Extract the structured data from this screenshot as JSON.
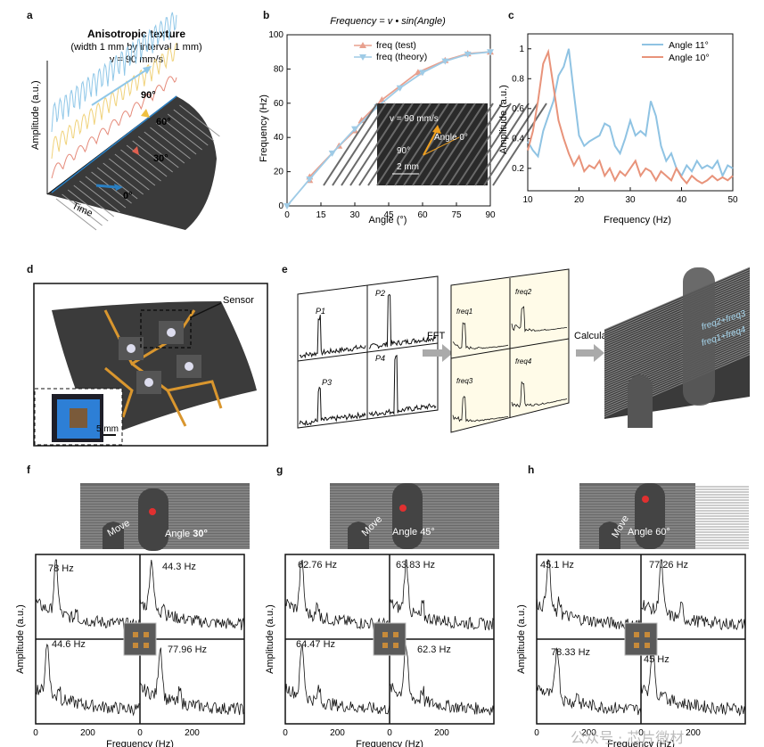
{
  "panels": {
    "a": "a",
    "b": "b",
    "c": "c",
    "d": "d",
    "e": "e",
    "f": "f",
    "g": "g",
    "h": "h"
  },
  "panel_a": {
    "title": "Anisotropic texture",
    "subtitle": "(width 1 mm by interval 1 mm)",
    "velocity": "v = 90 mm/s",
    "ylabel": "Amplitude (a.u.)",
    "xlabel": "Time",
    "angles": [
      "90°",
      "60°",
      "30°",
      "0°"
    ],
    "colors": {
      "a90": "#8fc7e8",
      "a60": "#f0d27a",
      "a30": "#e58a7a",
      "a0": "#2a7fc2"
    }
  },
  "panel_b": {
    "formula": "Frequency = v • sin(Angle)",
    "inset_velocity": "v = 90 mm/s",
    "inset_angle0": "Angle 0°",
    "inset_angle90": "90°",
    "inset_scale": "2 mm"
  },
  "panel_c": {
    "ylim_note": "0.2–1"
  },
  "panel_d": {
    "sensor_label": "Sensor",
    "scale_label": "5 mm"
  },
  "panel_e": {
    "fft_label": "FFT",
    "calculate_label": "Calculate",
    "peak_labels": [
      "P1",
      "P2",
      "P3",
      "P4"
    ],
    "freq_labels": [
      "freq1",
      "freq2",
      "freq3",
      "freq4"
    ],
    "overlay1": "freq2+freq3",
    "overlay2": "freq1+freq4"
  },
  "scenes": {
    "f": {
      "move": "Move",
      "angle_prefix": "Angle",
      "angle_value": "30°"
    },
    "g": {
      "move": "Move",
      "angle": "Angle 45°"
    },
    "h": {
      "move": "Move",
      "angle": "Angle 60°"
    }
  },
  "spectra": {
    "ylabel": "Amplitude (a.u.)",
    "xlabel": "Frequency (Hz)",
    "ticks": [
      "0",
      "200",
      "0",
      "200"
    ],
    "f": {
      "peaks": [
        "78 Hz",
        "44.3 Hz",
        "44.6 Hz",
        "77.96 Hz"
      ]
    },
    "g": {
      "peaks": [
        "62.76 Hz",
        "63.83 Hz",
        "64.47 Hz",
        "62.3 Hz"
      ]
    },
    "h": {
      "peaks": [
        "45.1 Hz",
        "77.26 Hz",
        "78.33 Hz",
        "45 Hz"
      ]
    }
  },
  "watermark": "公众号 · 芯片微材",
  "chart_data": [
    {
      "type": "line",
      "panel": "b",
      "title": "Frequency = v • sin(Angle)",
      "xlabel": "Angle (°)",
      "ylabel": "Frequency (Hz)",
      "xlim": [
        0,
        90
      ],
      "ylim": [
        0,
        100
      ],
      "xticks": [
        0,
        15,
        30,
        45,
        60,
        75,
        90
      ],
      "yticks": [
        0,
        20,
        40,
        60,
        80,
        100
      ],
      "legend_position": "top-right",
      "series": [
        {
          "name": "freq (test)",
          "color": "#e8a08e",
          "x": [
            10,
            10,
            23,
            30,
            33,
            42,
            58,
            70,
            80,
            90
          ],
          "y": [
            15,
            17,
            35,
            44,
            50,
            62,
            78,
            85,
            89,
            90
          ]
        },
        {
          "name": "freq (theory)",
          "color": "#9fcbe6",
          "x": [
            0,
            10,
            20,
            30,
            40,
            50,
            60,
            70,
            80,
            90
          ],
          "y": [
            0,
            15.6,
            30.8,
            45,
            57.9,
            68.9,
            77.9,
            84.6,
            88.6,
            90
          ]
        }
      ]
    },
    {
      "type": "line",
      "panel": "c",
      "xlabel": "Frequency (Hz)",
      "ylabel": "Amplitude (a.u.)",
      "xlim": [
        10,
        50
      ],
      "ylim": [
        0.05,
        1.1
      ],
      "xticks": [
        10,
        20,
        30,
        40,
        50
      ],
      "yticks": [
        0.2,
        0.4,
        0.6,
        0.8,
        1
      ],
      "legend_position": "top-right",
      "series": [
        {
          "name": "Angle 11°",
          "color": "#8fc3e3",
          "x": [
            10,
            11,
            12,
            13,
            14,
            15,
            16,
            17,
            18,
            19,
            20,
            21,
            22,
            23,
            24,
            25,
            26,
            27,
            28,
            29,
            30,
            31,
            32,
            33,
            34,
            35,
            36,
            37,
            38,
            39,
            40,
            41,
            42,
            43,
            44,
            45,
            46,
            47,
            48,
            49,
            50
          ],
          "y": [
            0.38,
            0.32,
            0.28,
            0.45,
            0.55,
            0.65,
            0.82,
            0.88,
            1.0,
            0.7,
            0.42,
            0.35,
            0.38,
            0.4,
            0.42,
            0.5,
            0.48,
            0.35,
            0.3,
            0.4,
            0.52,
            0.42,
            0.45,
            0.42,
            0.65,
            0.55,
            0.35,
            0.25,
            0.3,
            0.2,
            0.15,
            0.22,
            0.18,
            0.25,
            0.2,
            0.22,
            0.2,
            0.25,
            0.15,
            0.22,
            0.2
          ]
        },
        {
          "name": "Angle 10°",
          "color": "#e8937a",
          "x": [
            10,
            11,
            12,
            13,
            14,
            15,
            16,
            17,
            18,
            19,
            20,
            21,
            22,
            23,
            24,
            25,
            26,
            27,
            28,
            29,
            30,
            31,
            32,
            33,
            34,
            35,
            36,
            37,
            38,
            39,
            40,
            41,
            42,
            43,
            44,
            45,
            46,
            47,
            48,
            49,
            50
          ],
          "y": [
            0.32,
            0.45,
            0.65,
            0.9,
            0.98,
            0.75,
            0.52,
            0.4,
            0.3,
            0.22,
            0.28,
            0.18,
            0.22,
            0.2,
            0.25,
            0.15,
            0.2,
            0.12,
            0.18,
            0.15,
            0.2,
            0.25,
            0.15,
            0.2,
            0.18,
            0.12,
            0.18,
            0.15,
            0.12,
            0.2,
            0.14,
            0.1,
            0.15,
            0.12,
            0.1,
            0.12,
            0.15,
            0.12,
            0.14,
            0.12,
            0.15
          ]
        }
      ]
    }
  ]
}
